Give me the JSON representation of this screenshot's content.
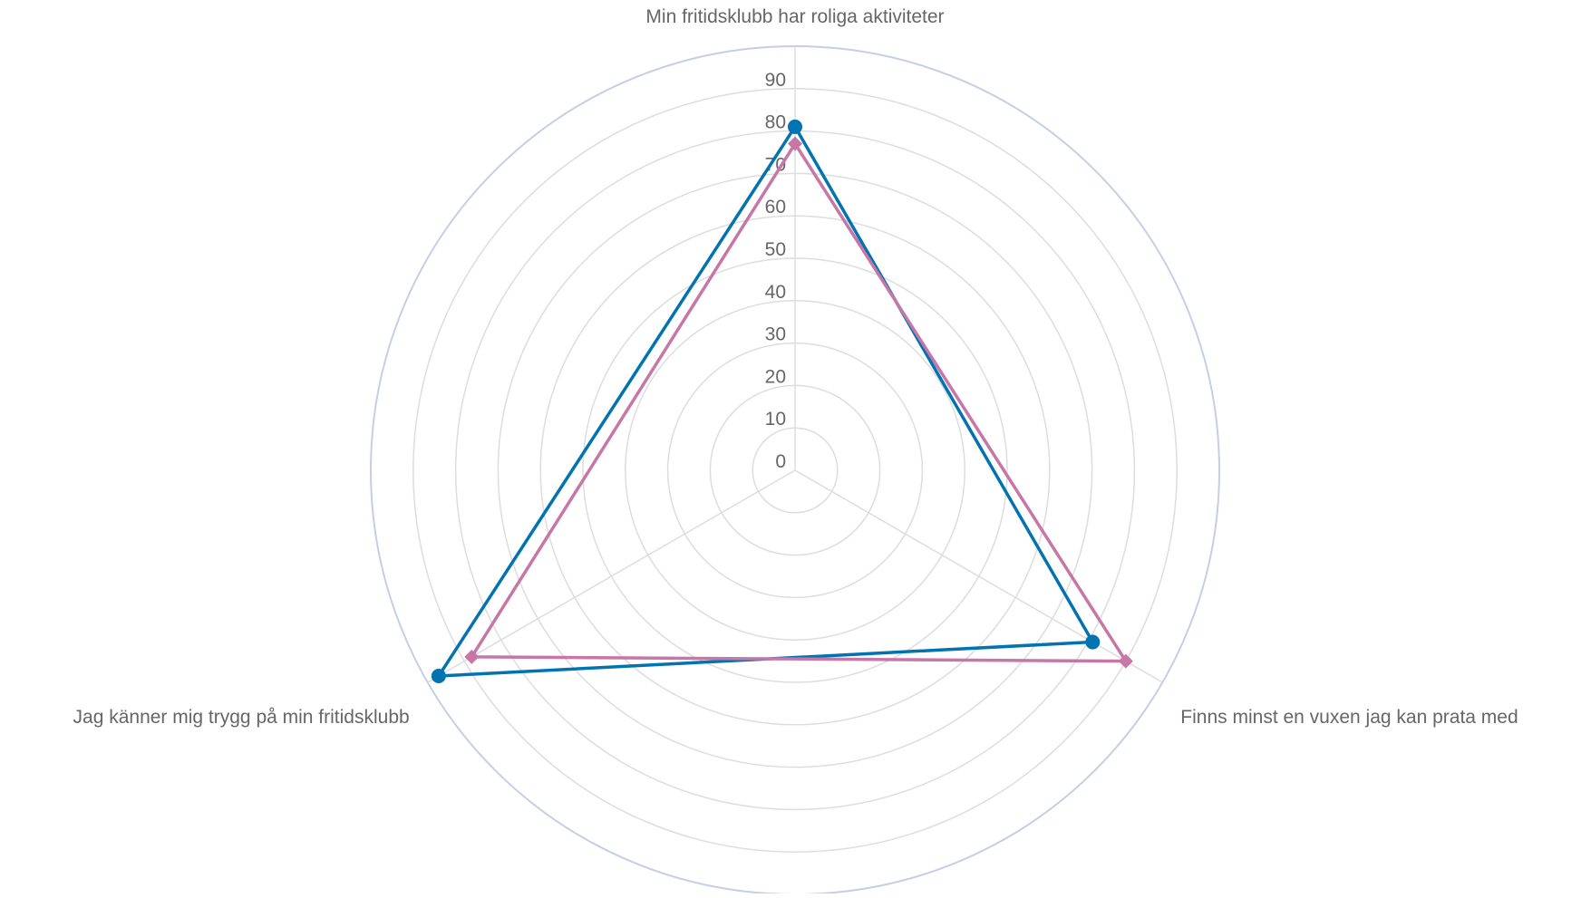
{
  "chart_data": {
    "type": "radar",
    "title": "",
    "categories": [
      "Min fritidsklubb har roliga aktiviteter",
      "Finns minst en vuxen jag kan prata med",
      "Jag känner mig trygg på min fritidsklubb"
    ],
    "rlim": [
      0,
      100
    ],
    "tick_labels": [
      "0",
      "10",
      "20",
      "30",
      "40",
      "50",
      "60",
      "70",
      "80",
      "90"
    ],
    "grid": true,
    "legend": "none",
    "series": [
      {
        "values": [
          81,
          81,
          97
        ],
        "color": "#0073b0",
        "marker": "circle"
      },
      {
        "values": [
          77,
          90,
          88
        ],
        "color": "#c677a8",
        "marker": "diamond"
      }
    ],
    "colors": {
      "grid": "#dddddd",
      "outer_ring": "#c4cfe6",
      "text": "#666666"
    }
  }
}
